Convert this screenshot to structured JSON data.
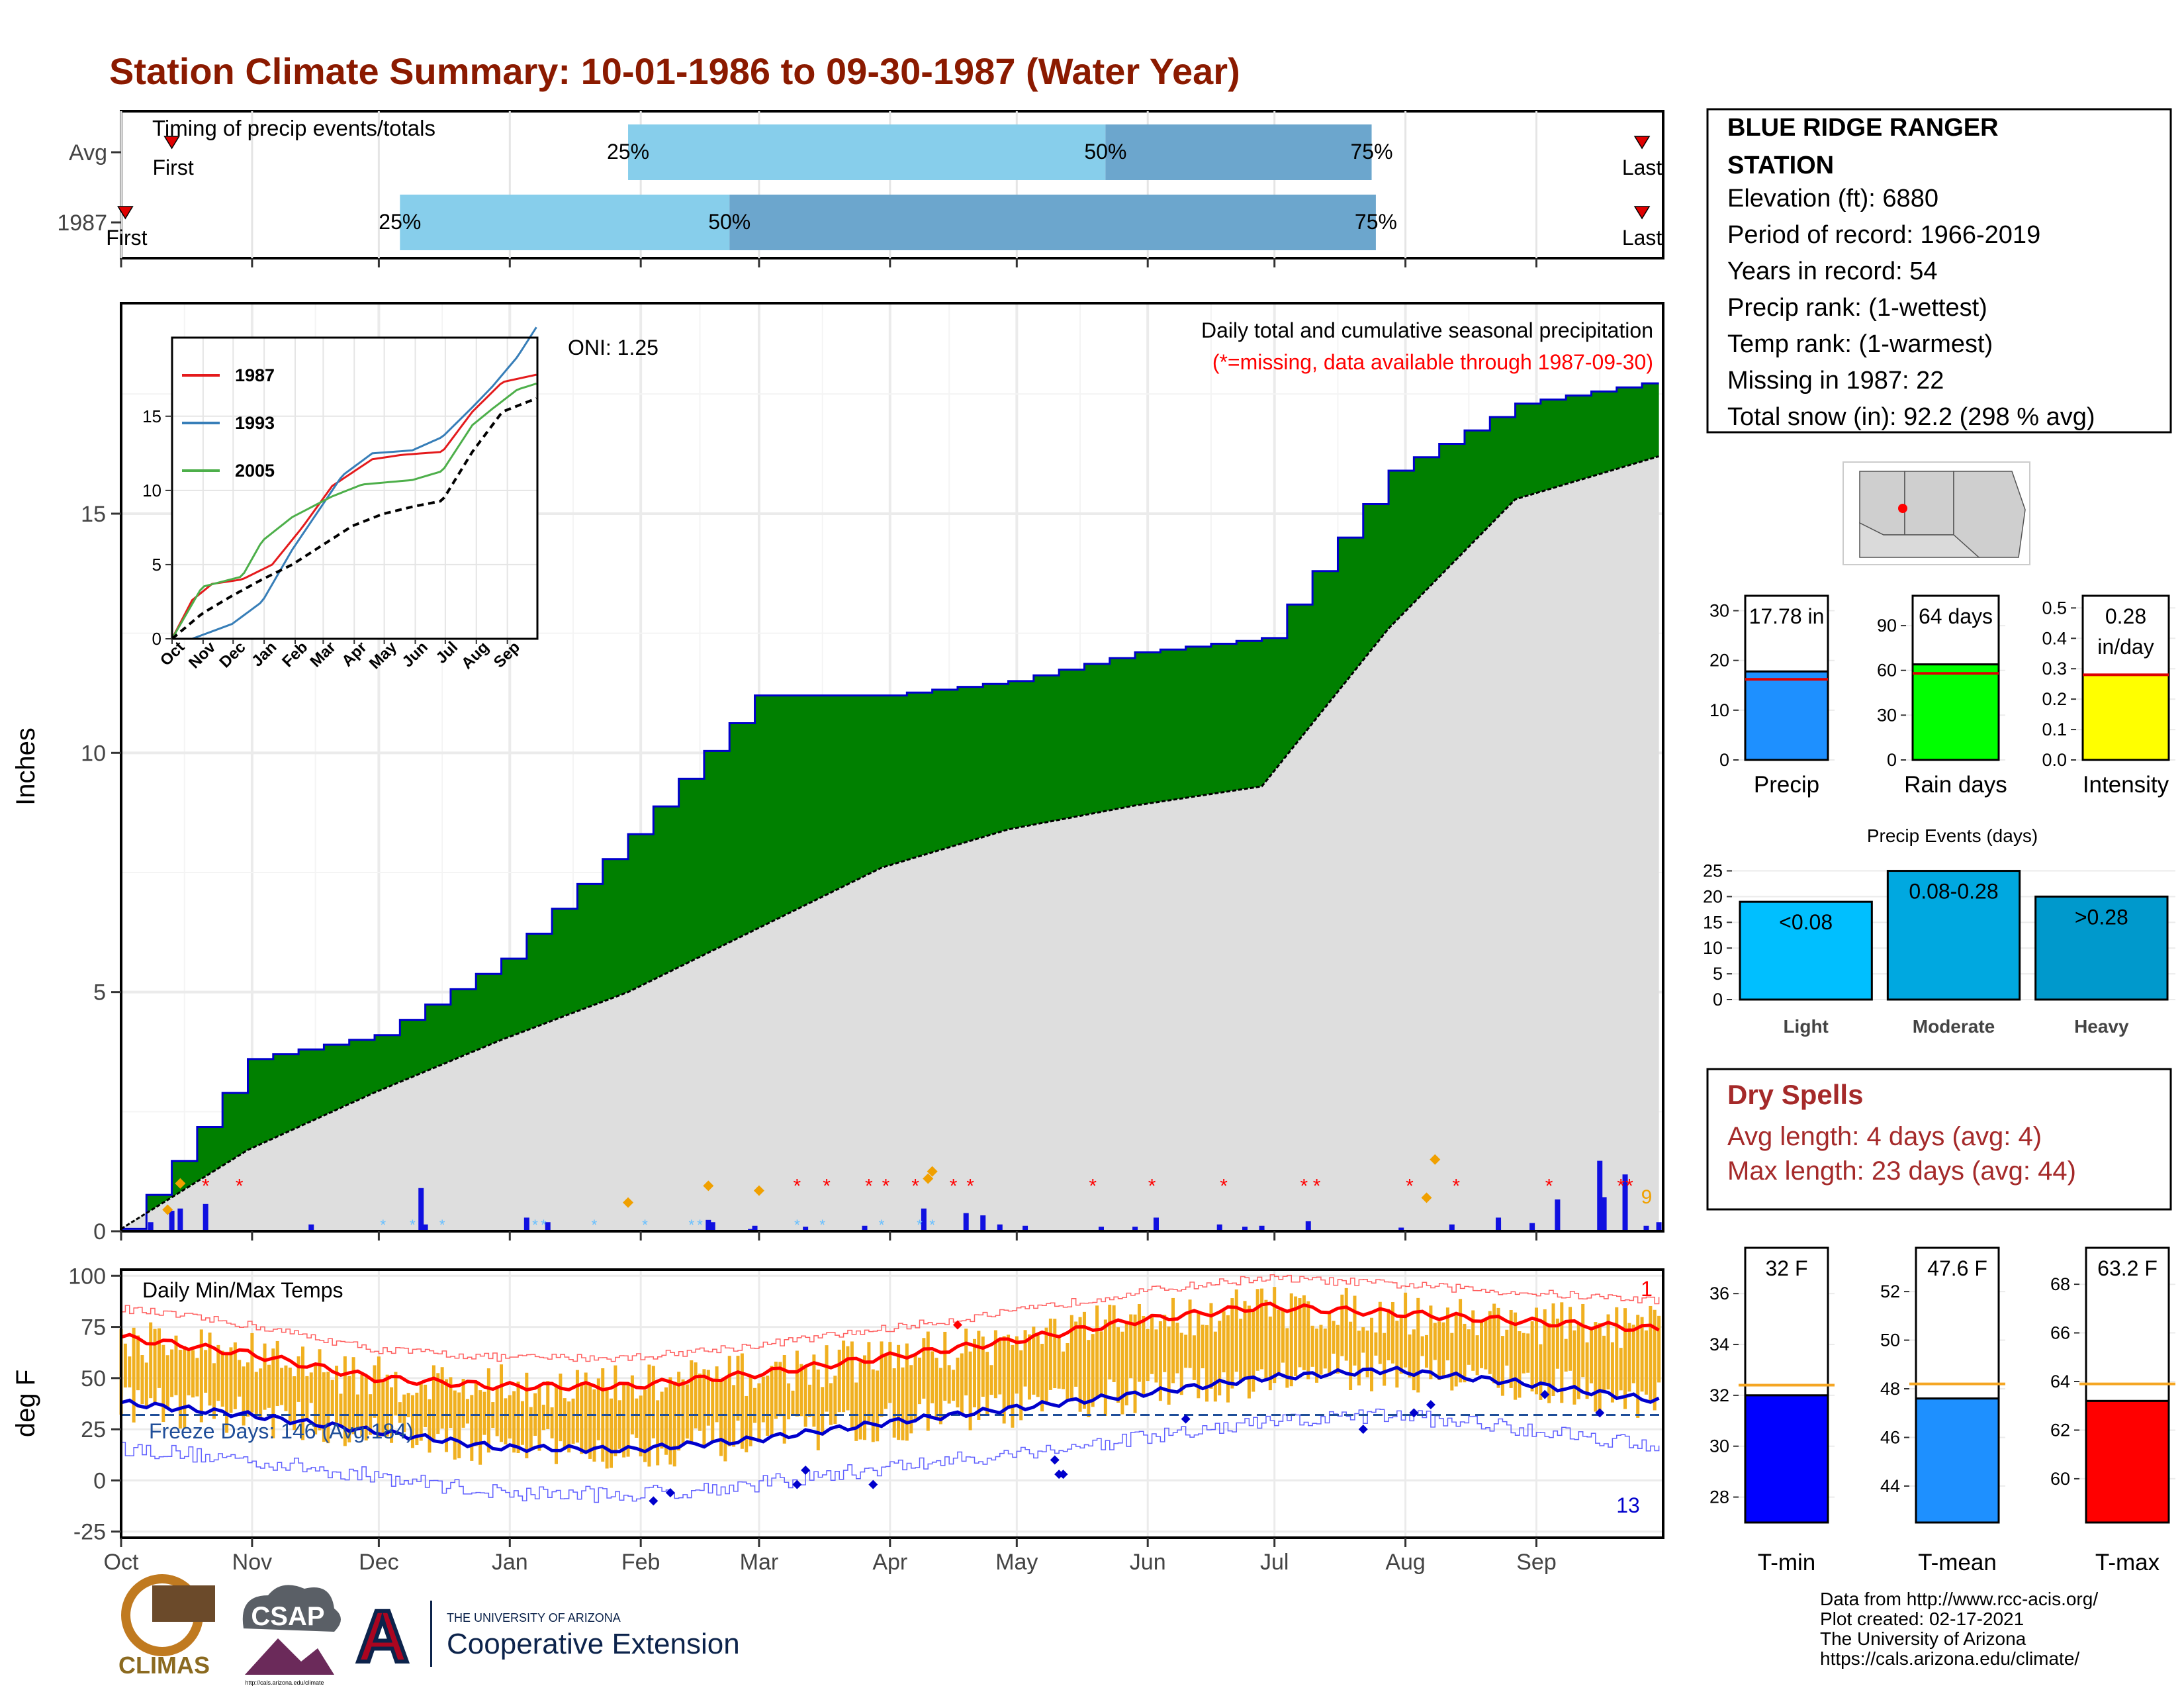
{
  "title": "Station Climate Summary: 10-01-1986 to 09-30-1987 (Water Year)",
  "colors": {
    "title": "#8B1A00",
    "green": "#008000",
    "blue_line": "#0000CC",
    "gray_fill": "#DEDEDE",
    "light_blue": "#87CEEB",
    "mid_blue": "#6CA6CD",
    "orange": "#F0B020",
    "red": "#FF0000",
    "dry_spells": "#A52A2A"
  },
  "months": [
    "Oct",
    "Nov",
    "Dec",
    "Jan",
    "Feb",
    "Mar",
    "Apr",
    "May",
    "Jun",
    "Jul",
    "Aug",
    "Sep"
  ],
  "timing": {
    "title": "Timing of precip events/totals",
    "rows": [
      {
        "label": "Avg",
        "first_label": "First",
        "last_label": "Last",
        "p25_label": "25%",
        "p50_label": "50%",
        "p75_label": "75%",
        "first_day": 12,
        "p25_day": 120,
        "p50_day": 233,
        "p75_day": 296,
        "last_day": 360
      },
      {
        "label": "1987",
        "first_label": "First",
        "last_label": "Last",
        "p25_label": "25%",
        "p50_label": "50%",
        "p75_label": "75%",
        "first_day": 1,
        "p25_day": 66,
        "p50_day": 144,
        "p75_day": 297,
        "last_day": 360
      }
    ]
  },
  "precip": {
    "ylabel": "Inches",
    "yticks": [
      0,
      5,
      10,
      15
    ],
    "subtitle": "Daily total and cumulative seasonal precipitation",
    "note": "(*=missing, data available through 1987-09-30)",
    "oni": "ONI: 1.25",
    "missing_count": "9"
  },
  "inset": {
    "yticks": [
      0,
      5,
      10,
      15
    ],
    "months": [
      "Oct",
      "Nov",
      "Dec",
      "Jan",
      "Feb",
      "Mar",
      "Apr",
      "May",
      "Jun",
      "Jul",
      "Aug",
      "Sep"
    ],
    "legend": [
      {
        "name": "1987",
        "color": "#E41A1C"
      },
      {
        "name": "1993",
        "color": "#377EB8"
      },
      {
        "name": "2005",
        "color": "#4DAF4A"
      }
    ]
  },
  "temps": {
    "ylabel": "deg F",
    "title": "Daily Min/Max Temps",
    "freeze": "Freeze Days: 146 (Avg:184)",
    "yticks": [
      -25,
      0,
      25,
      50,
      75,
      100
    ],
    "count_high": "1",
    "count_low": "13"
  },
  "station": {
    "name": "BLUE RIDGE RANGER STATION",
    "lines": [
      "Elevation (ft): 6880",
      "Period of record: 1966-2019",
      "Years in record: 54",
      "Precip rank:  (1-wettest)",
      "Temp rank:  (1-warmest)",
      "Missing in 1987: 22",
      "Total snow (in): 92.2 (298 % avg)"
    ]
  },
  "mini": [
    {
      "label": "Precip",
      "value_label": "17.78 in",
      "value": 17.78,
      "avg": 16.2,
      "max": 33,
      "ticks": [
        0,
        10,
        20,
        30
      ],
      "color": "#1E90FF"
    },
    {
      "label": "Rain days",
      "value_label": "64 days",
      "value": 64,
      "avg": 58,
      "max": 110,
      "ticks": [
        0,
        30,
        60,
        90
      ],
      "color": "#00FF00"
    },
    {
      "label": "Intensity",
      "value_label": "0.28 in/day",
      "value": 0.28,
      "avg": 0.28,
      "max": 0.54,
      "ticks": [
        "0.0",
        "0.1",
        "0.2",
        "0.3",
        "0.4",
        "0.5"
      ],
      "color": "#FFFF00"
    }
  ],
  "events": {
    "title": "Precip Events (days)",
    "yticks": [
      0,
      5,
      10,
      15,
      20,
      25
    ],
    "categories": [
      "Light",
      "Moderate",
      "Heavy"
    ],
    "labels": [
      "<0.08",
      "0.08-0.28",
      ">0.28"
    ],
    "values": [
      19,
      25,
      20
    ],
    "colors": [
      "#00BFFF",
      "#00A8E0",
      "#0099CC"
    ]
  },
  "dry": {
    "title": "Dry Spells",
    "lines": [
      "Avg length: 4 days (avg: 4)",
      "Max length: 23 days (avg: 44)"
    ]
  },
  "tbars": [
    {
      "label": "T-min",
      "value_label": "32 F",
      "value": 32,
      "avg": 32.4,
      "min": 27,
      "max": 37.8,
      "ticks": [
        28,
        30,
        32,
        34,
        36
      ],
      "color": "#0000FF"
    },
    {
      "label": "T-mean",
      "value_label": "47.6 F",
      "value": 47.6,
      "avg": 48.2,
      "min": 42.5,
      "max": 53.8,
      "ticks": [
        44,
        46,
        48,
        50,
        52
      ],
      "color": "#1E90FF"
    },
    {
      "label": "T-max",
      "value_label": "63.2 F",
      "value": 63.2,
      "avg": 63.9,
      "min": 58.2,
      "max": 69.5,
      "ticks": [
        60,
        62,
        64,
        66,
        68
      ],
      "color": "#FF0000"
    }
  ],
  "credits": [
    "Data from http://www.rcc-acis.org/",
    "Plot created: 02-17-2021",
    "The University of Arizona",
    "https://cals.arizona.edu/climate/"
  ],
  "logos": {
    "climas": "CLIMAS",
    "csap": "CSAP",
    "csap_url": "http://cals.arizona.edu/climate",
    "ua_small": "THE UNIVERSITY OF ARIZONA",
    "ua_big": "Cooperative Extension"
  },
  "chart_data": [
    {
      "type": "area",
      "title": "Daily total and cumulative seasonal precipitation",
      "ylabel": "Inches",
      "ylim": [
        0,
        19.4
      ],
      "x": [
        0,
        30,
        60,
        90,
        120,
        150,
        180,
        210,
        240,
        270,
        300,
        330,
        364
      ],
      "series": [
        {
          "name": "1987",
          "values": [
            0.05,
            3.6,
            4.1,
            5.7,
            8.3,
            11.2,
            11.2,
            11.5,
            12.1,
            12.4,
            15.9,
            17.3,
            17.78
          ]
        },
        {
          "values": [
            0.05,
            1.7,
            2.9,
            4.0,
            5.0,
            6.3,
            7.6,
            8.4,
            8.9,
            9.3,
            12.6,
            15.3,
            16.2
          ]
        }
      ]
    },
    {
      "type": "line",
      "title": "Daily Min/Max Temps",
      "ylabel": "deg F",
      "ylim": [
        -28,
        103
      ],
      "x": [
        0,
        30,
        60,
        90,
        120,
        150,
        180,
        210,
        240,
        270,
        300,
        330,
        364
      ],
      "series": [
        {
          "values": [
            70,
            62,
            50,
            46,
            46,
            52,
            60,
            68,
            78,
            85,
            82,
            78,
            74
          ]
        },
        {
          "values": [
            38,
            32,
            24,
            16,
            15,
            20,
            28,
            35,
            42,
            50,
            54,
            48,
            39
          ]
        }
      ]
    }
  ]
}
